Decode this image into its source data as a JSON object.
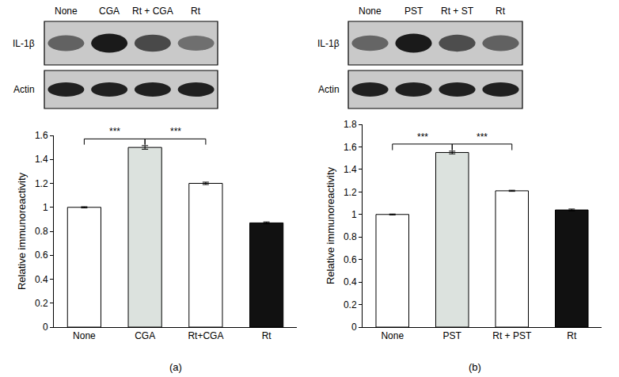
{
  "chart_data": [
    {
      "type": "bar",
      "panel": "(a)",
      "blot": {
        "lanes": [
          "None",
          "CGA",
          "Rt + CGA",
          "Rt"
        ],
        "rows": [
          "IL-1β",
          "Actin"
        ]
      },
      "categories": [
        "None",
        "CGA",
        "Rt+CGA",
        "Rt"
      ],
      "values": [
        1.0,
        1.5,
        1.2,
        0.87
      ],
      "errors": [
        0.005,
        0.015,
        0.01,
        0.008
      ],
      "colors": [
        "#ffffff",
        "#dce2de",
        "#ffffff",
        "#111111"
      ],
      "ylabel": "Relative immunoreactivity",
      "ylim": [
        0,
        1.6
      ],
      "yticks": [
        0,
        0.2,
        0.4,
        0.6,
        0.8,
        1,
        1.2,
        1.4,
        1.6
      ],
      "significance": [
        {
          "from": 0,
          "to": 1,
          "label": "***"
        },
        {
          "from": 1,
          "to": 2,
          "label": "***"
        }
      ]
    },
    {
      "type": "bar",
      "panel": "(b)",
      "blot": {
        "lanes": [
          "None",
          "PST",
          "Rt + ST",
          "Rt"
        ],
        "rows": [
          "IL-1β",
          "Actin"
        ]
      },
      "categories": [
        "None",
        "PST",
        "Rt + PST",
        "Rt"
      ],
      "values": [
        1.0,
        1.55,
        1.21,
        1.04
      ],
      "errors": [
        0.004,
        0.012,
        0.005,
        0.008
      ],
      "colors": [
        "#ffffff",
        "#dce2de",
        "#ffffff",
        "#111111"
      ],
      "ylabel": "Relative immunoreactivity",
      "ylim": [
        0,
        1.8
      ],
      "yticks": [
        0,
        0.2,
        0.4,
        0.6,
        0.8,
        1,
        1.2,
        1.4,
        1.6,
        1.8
      ],
      "significance": [
        {
          "from": 0,
          "to": 1,
          "label": "***"
        },
        {
          "from": 1,
          "to": 2,
          "label": "***"
        }
      ]
    }
  ]
}
